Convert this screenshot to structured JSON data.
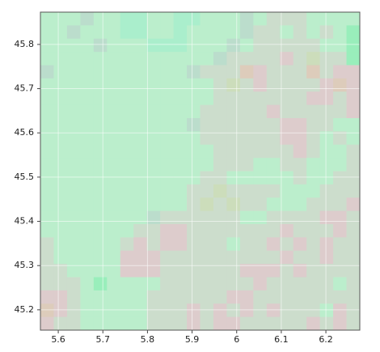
{
  "chart_data": {
    "type": "image",
    "xlim": [
      5.56,
      6.276
    ],
    "ylim": [
      45.154,
      45.873
    ],
    "xticks": [
      5.6,
      5.7,
      5.8,
      5.9,
      6,
      6.1,
      6.2
    ],
    "yticks": [
      45.2,
      45.3,
      45.4,
      45.5,
      45.6,
      45.7,
      45.8
    ],
    "grid": true,
    "pixels": [
      [
        "#bec",
        "#bec",
        "#bec",
        "#bdc",
        "#bec",
        "#bec",
        "#aec",
        "#aec",
        "#bec",
        "#bec",
        "#aec",
        "#aec",
        "#bec",
        "#bec",
        "#bec",
        "#bdc",
        "#bec",
        "#cdc",
        "#cdc",
        "#cdc",
        "#bec",
        "#bec",
        "#bec",
        "#bec"
      ],
      [
        "#bec",
        "#bec",
        "#bdc",
        "#bec",
        "#bec",
        "#bec",
        "#aec",
        "#aec",
        "#bec",
        "#bec",
        "#aec",
        "#bec",
        "#bec",
        "#bec",
        "#bec",
        "#bdc",
        "#cdc",
        "#cdc",
        "#bec",
        "#cdc",
        "#bec",
        "#cdc",
        "#bec",
        "#9eb"
      ],
      [
        "#bec",
        "#bec",
        "#bec",
        "#bec",
        "#bdc",
        "#bec",
        "#bec",
        "#bec",
        "#aec",
        "#aec",
        "#aec",
        "#bec",
        "#bec",
        "#bec",
        "#bdc",
        "#bec",
        "#cdc",
        "#cdc",
        "#cdc",
        "#cdc",
        "#cdc",
        "#bec",
        "#bec",
        "#9eb"
      ],
      [
        "#bec",
        "#bec",
        "#bec",
        "#bec",
        "#bec",
        "#bec",
        "#bec",
        "#bec",
        "#bec",
        "#bec",
        "#bec",
        "#bec",
        "#bec",
        "#bdc",
        "#cdc",
        "#cdc",
        "#cdc",
        "#cdc",
        "#dcc",
        "#cdc",
        "#cdb",
        "#cdc",
        "#cdc",
        "#9eb"
      ],
      [
        "#bdc",
        "#bec",
        "#bec",
        "#bec",
        "#bec",
        "#bec",
        "#bec",
        "#bec",
        "#bec",
        "#bec",
        "#bec",
        "#bdc",
        "#cdc",
        "#cdc",
        "#cdc",
        "#dcb",
        "#dcc",
        "#cdc",
        "#cdc",
        "#cdc",
        "#dcb",
        "#cdc",
        "#dcc",
        "#dcc"
      ],
      [
        "#bec",
        "#bec",
        "#bec",
        "#bec",
        "#bec",
        "#bec",
        "#bec",
        "#bec",
        "#bec",
        "#bec",
        "#bec",
        "#bec",
        "#bec",
        "#cdc",
        "#cdb",
        "#cdc",
        "#dcc",
        "#cdc",
        "#cdc",
        "#cdc",
        "#cdc",
        "#dcc",
        "#dcb",
        "#dcc"
      ],
      [
        "#bec",
        "#bec",
        "#bec",
        "#bec",
        "#bec",
        "#bec",
        "#bec",
        "#bec",
        "#bec",
        "#bec",
        "#bec",
        "#bec",
        "#bec",
        "#cdc",
        "#cdc",
        "#cdc",
        "#cdc",
        "#cdc",
        "#cdc",
        "#cdc",
        "#dcc",
        "#dcc",
        "#cdc",
        "#dcc"
      ],
      [
        "#bec",
        "#bec",
        "#bec",
        "#bec",
        "#bec",
        "#bec",
        "#bec",
        "#bec",
        "#bec",
        "#bec",
        "#bec",
        "#bec",
        "#cdc",
        "#cdc",
        "#cdc",
        "#cdc",
        "#cdc",
        "#dcc",
        "#cdc",
        "#cdc",
        "#cdc",
        "#cdc",
        "#cdc",
        "#dcc"
      ],
      [
        "#bec",
        "#bec",
        "#bec",
        "#bec",
        "#bec",
        "#bec",
        "#bec",
        "#bec",
        "#bec",
        "#bec",
        "#bec",
        "#bdc",
        "#cdc",
        "#cdc",
        "#cdc",
        "#cdc",
        "#cdc",
        "#cdc",
        "#dcc",
        "#dcc",
        "#cdc",
        "#cdc",
        "#bec",
        "#bec"
      ],
      [
        "#bec",
        "#bec",
        "#bec",
        "#bec",
        "#bec",
        "#bec",
        "#bec",
        "#bec",
        "#bec",
        "#bec",
        "#bec",
        "#bec",
        "#cdc",
        "#cdc",
        "#cdc",
        "#cdc",
        "#cdc",
        "#cdc",
        "#dcc",
        "#dcc",
        "#cdc",
        "#bec",
        "#cdc",
        "#bec"
      ],
      [
        "#bec",
        "#bec",
        "#bec",
        "#bec",
        "#bec",
        "#bec",
        "#bec",
        "#bec",
        "#bec",
        "#bec",
        "#bec",
        "#bec",
        "#bec",
        "#cdc",
        "#cdc",
        "#cdc",
        "#cdc",
        "#cdc",
        "#cdc",
        "#dcc",
        "#cdc",
        "#bec",
        "#bec",
        "#cdc"
      ],
      [
        "#bec",
        "#bec",
        "#bec",
        "#bec",
        "#bec",
        "#bec",
        "#bec",
        "#bec",
        "#bec",
        "#bec",
        "#bec",
        "#bec",
        "#bec",
        "#cdc",
        "#cdc",
        "#cdc",
        "#bec",
        "#bec",
        "#cdc",
        "#cdc",
        "#bec",
        "#bec",
        "#bec",
        "#cdc"
      ],
      [
        "#bec",
        "#bec",
        "#bec",
        "#bec",
        "#bec",
        "#bec",
        "#bec",
        "#bec",
        "#bec",
        "#bec",
        "#bec",
        "#bec",
        "#cdc",
        "#cdc",
        "#bec",
        "#bec",
        "#bec",
        "#bec",
        "#bec",
        "#cdc",
        "#bec",
        "#bec",
        "#cdc",
        "#cdc"
      ],
      [
        "#bec",
        "#bec",
        "#bec",
        "#bec",
        "#bec",
        "#bec",
        "#bec",
        "#bec",
        "#bec",
        "#bec",
        "#bec",
        "#cdc",
        "#cdc",
        "#cdb",
        "#cdc",
        "#cdc",
        "#cdc",
        "#cdc",
        "#bec",
        "#bec",
        "#bec",
        "#cdc",
        "#cdc",
        "#cdc"
      ],
      [
        "#bec",
        "#bec",
        "#bec",
        "#bec",
        "#bec",
        "#bec",
        "#bec",
        "#bec",
        "#bec",
        "#bec",
        "#bec",
        "#cdc",
        "#cdb",
        "#cdc",
        "#cdb",
        "#cdc",
        "#cdc",
        "#bec",
        "#bec",
        "#bec",
        "#cdc",
        "#cdc",
        "#cdc",
        "#dcc"
      ],
      [
        "#bec",
        "#bec",
        "#bec",
        "#bec",
        "#bec",
        "#bec",
        "#bec",
        "#bec",
        "#bdc",
        "#cdc",
        "#cdc",
        "#cdc",
        "#cdc",
        "#cdc",
        "#cdc",
        "#bec",
        "#bec",
        "#cdc",
        "#cdc",
        "#cdc",
        "#cdc",
        "#dcc",
        "#dcc",
        "#cdc"
      ],
      [
        "#bec",
        "#bec",
        "#bec",
        "#bec",
        "#bec",
        "#bec",
        "#bec",
        "#cdc",
        "#cdc",
        "#dcc",
        "#dcc",
        "#cdc",
        "#cdc",
        "#cdc",
        "#cdc",
        "#cdc",
        "#cdc",
        "#cdc",
        "#dcc",
        "#cdc",
        "#cdc",
        "#cdc",
        "#dcc",
        "#cdc"
      ],
      [
        "#cdc",
        "#bec",
        "#bec",
        "#bec",
        "#bec",
        "#bec",
        "#cdc",
        "#dcc",
        "#cdc",
        "#dcc",
        "#dcc",
        "#cdc",
        "#cdc",
        "#cdc",
        "#bec",
        "#cdc",
        "#cdc",
        "#dcc",
        "#cdc",
        "#dcc",
        "#cdc",
        "#dcc",
        "#cdc",
        "#cdc"
      ],
      [
        "#cdc",
        "#bec",
        "#bec",
        "#bec",
        "#bec",
        "#bec",
        "#dcc",
        "#dcc",
        "#dcc",
        "#cdc",
        "#cdc",
        "#cdc",
        "#cdc",
        "#cdc",
        "#cdc",
        "#cdc",
        "#cdc",
        "#cdc",
        "#dcc",
        "#cdc",
        "#cdc",
        "#dcc",
        "#cdc",
        "#cdc"
      ],
      [
        "#cdc",
        "#cdc",
        "#bec",
        "#bec",
        "#bec",
        "#bec",
        "#dcc",
        "#dcc",
        "#dcc",
        "#cdc",
        "#cdc",
        "#cdc",
        "#cdc",
        "#cdc",
        "#cdc",
        "#dcc",
        "#dcc",
        "#dcc",
        "#cdc",
        "#dcc",
        "#cdc",
        "#cdc",
        "#cdc",
        "#cdc"
      ],
      [
        "#cdc",
        "#cdc",
        "#cdc",
        "#bec",
        "#9eb",
        "#bec",
        "#bec",
        "#bec",
        "#bec",
        "#cdc",
        "#cdc",
        "#cdc",
        "#cdc",
        "#cdc",
        "#cdc",
        "#cdc",
        "#dcc",
        "#cdc",
        "#cdc",
        "#cdc",
        "#cdc",
        "#cdc",
        "#bec",
        "#cdc"
      ],
      [
        "#dcc",
        "#dcc",
        "#cdc",
        "#bec",
        "#bec",
        "#bec",
        "#bec",
        "#bec",
        "#cdc",
        "#cdc",
        "#cdc",
        "#cdc",
        "#cdc",
        "#cdc",
        "#dcc",
        "#dcc",
        "#cdc",
        "#cdc",
        "#cdc",
        "#cdc",
        "#cdc",
        "#cdc",
        "#cdc",
        "#cdc"
      ],
      [
        "#dcb",
        "#dcc",
        "#cdc",
        "#bec",
        "#bec",
        "#bec",
        "#bec",
        "#bec",
        "#cdc",
        "#cdc",
        "#cdc",
        "#dcc",
        "#cdc",
        "#dcc",
        "#cdc",
        "#dcc",
        "#cdc",
        "#dcc",
        "#cdc",
        "#cdc",
        "#cdc",
        "#bec",
        "#dcc",
        "#cdc"
      ],
      [
        "#dcc",
        "#cdc",
        "#cdc",
        "#bec",
        "#bec",
        "#bec",
        "#bec",
        "#bec",
        "#cdc",
        "#cdc",
        "#cdc",
        "#dcc",
        "#cdc",
        "#dcc",
        "#dcc",
        "#cdc",
        "#cdc",
        "#cdc",
        "#cdc",
        "#cdc",
        "#dcc",
        "#cdc",
        "#dcc",
        "#cdc"
      ]
    ]
  }
}
